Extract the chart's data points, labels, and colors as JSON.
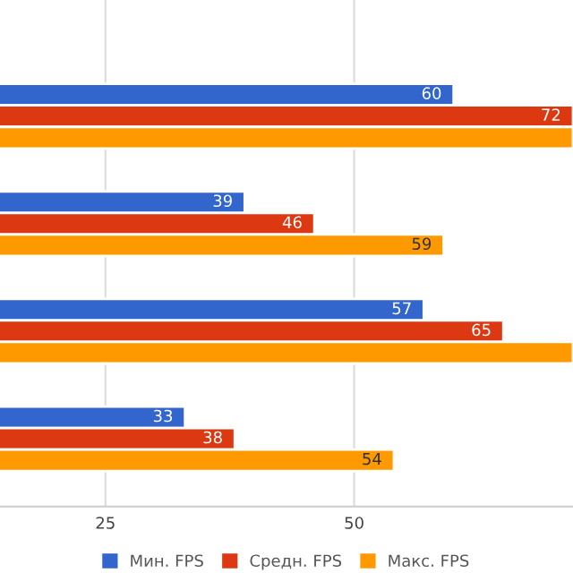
{
  "chart_data": {
    "type": "bar",
    "orientation": "horizontal",
    "categories": [
      null,
      null,
      null,
      null
    ],
    "series": [
      {
        "name": "Мин. FPS",
        "color": "#3366cc",
        "values": [
          60,
          39,
          57,
          33
        ],
        "value_labels": [
          "60",
          "39",
          "57",
          "33"
        ]
      },
      {
        "name": "Средн. FPS",
        "color": "#dc3912",
        "values": [
          72,
          46,
          65,
          38
        ],
        "value_labels": [
          "72",
          "46",
          "65",
          "38"
        ]
      },
      {
        "name": "Макс. FPS",
        "color": "#ff9900",
        "values": [
          72,
          59,
          72,
          54
        ],
        "value_labels": [
          null,
          "59",
          null,
          "54"
        ]
      }
    ],
    "xlim": [
      14.4,
      72
    ],
    "xticks": [
      25,
      50
    ],
    "grid": "x",
    "legend": "bottom",
    "tick_labels": "x"
  }
}
